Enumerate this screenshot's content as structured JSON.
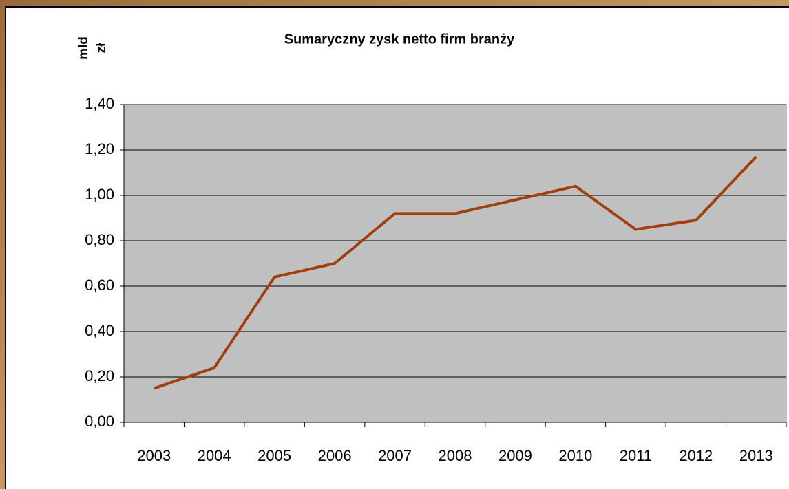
{
  "chart_data": {
    "type": "line",
    "title": "Sumaryczny zysk netto firm branży",
    "y_label": [
      "mld",
      "zł"
    ],
    "categories": [
      "2003",
      "2004",
      "2005",
      "2006",
      "2007",
      "2008",
      "2009",
      "2010",
      "2011",
      "2012",
      "2013"
    ],
    "values": [
      0.15,
      0.24,
      0.64,
      0.7,
      0.92,
      0.92,
      0.98,
      1.04,
      0.85,
      0.89,
      1.17
    ],
    "color": "#a0410d",
    "ylim": [
      0,
      1.4
    ],
    "yticks": [
      {
        "value": 0,
        "label": "0,00"
      },
      {
        "value": 0.2,
        "label": "0,20"
      },
      {
        "value": 0.4,
        "label": "0,40"
      },
      {
        "value": 0.6,
        "label": "0,60"
      },
      {
        "value": 0.8,
        "label": "0,80"
      },
      {
        "value": 1.0,
        "label": "1,00"
      },
      {
        "value": 1.2,
        "label": "1,20"
      },
      {
        "value": 1.4,
        "label": "1,40"
      }
    ],
    "grid": true
  }
}
